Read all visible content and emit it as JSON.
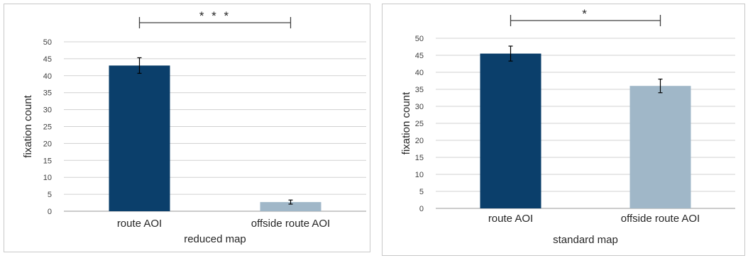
{
  "chart_data": [
    {
      "type": "bar",
      "categories": [
        "route AOI",
        "offside route AOI"
      ],
      "values": [
        43.0,
        2.7
      ],
      "errors": [
        2.3,
        0.6
      ],
      "colors": [
        "#0b3f6b",
        "#a0b7c8"
      ],
      "xlabel": "reduced map",
      "ylabel": "fixation count",
      "ylim": [
        0,
        50
      ],
      "yticks": [
        "0",
        "5",
        "10",
        "15",
        "20",
        "25",
        "30",
        "35",
        "40",
        "45",
        "50"
      ],
      "significance": "* * *",
      "grid": true
    },
    {
      "type": "bar",
      "categories": [
        "route AOI",
        "offside route AOI"
      ],
      "values": [
        45.5,
        36.0
      ],
      "errors": [
        2.2,
        2.0
      ],
      "colors": [
        "#0b3f6b",
        "#a0b7c8"
      ],
      "xlabel": "standard map",
      "ylabel": "fixation count",
      "ylim": [
        0,
        50
      ],
      "yticks": [
        "0",
        "5",
        "10",
        "15",
        "20",
        "25",
        "30",
        "35",
        "40",
        "45",
        "50"
      ],
      "significance": "*",
      "grid": true
    }
  ]
}
